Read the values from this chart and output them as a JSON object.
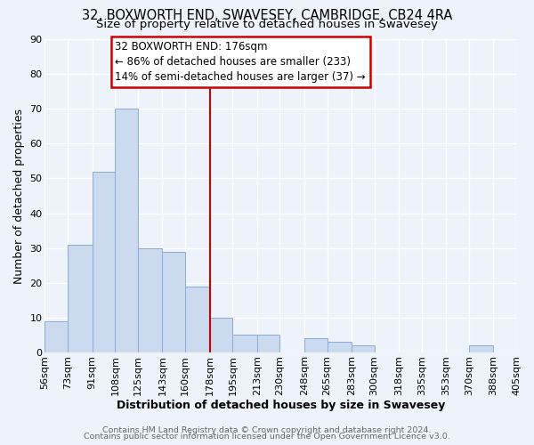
{
  "title_line1": "32, BOXWORTH END, SWAVESEY, CAMBRIDGE, CB24 4RA",
  "title_line2": "Size of property relative to detached houses in Swavesey",
  "xlabel": "Distribution of detached houses by size in Swavesey",
  "ylabel": "Number of detached properties",
  "footer_line1": "Contains HM Land Registry data © Crown copyright and database right 2024.",
  "footer_line2": "Contains public sector information licensed under the Open Government Licence v3.0.",
  "bin_edges": [
    56,
    73,
    91,
    108,
    125,
    143,
    160,
    178,
    195,
    213,
    230,
    248,
    265,
    283,
    300,
    318,
    335,
    353,
    370,
    388,
    405
  ],
  "bin_labels": [
    "56sqm",
    "73sqm",
    "91sqm",
    "108sqm",
    "125sqm",
    "143sqm",
    "160sqm",
    "178sqm",
    "195sqm",
    "213sqm",
    "230sqm",
    "248sqm",
    "265sqm",
    "283sqm",
    "300sqm",
    "318sqm",
    "335sqm",
    "353sqm",
    "370sqm",
    "388sqm",
    "405sqm"
  ],
  "counts": [
    9,
    31,
    52,
    70,
    30,
    29,
    19,
    10,
    5,
    5,
    0,
    4,
    3,
    2,
    0,
    0,
    0,
    0,
    2,
    0
  ],
  "bar_color": "#ccdaf0",
  "bar_edge_color": "#8aaad4",
  "reference_line_x": 178,
  "reference_line_color": "#cc0000",
  "annotation_line1": "32 BOXWORTH END: 176sqm",
  "annotation_line2": "← 86% of detached houses are smaller (233)",
  "annotation_line3": "14% of semi-detached houses are larger (37) →",
  "annotation_box_color": "#cc0000",
  "annotation_box_fill": "#ffffff",
  "ylim": [
    0,
    90
  ],
  "yticks": [
    0,
    10,
    20,
    30,
    40,
    50,
    60,
    70,
    80,
    90
  ],
  "background_color": "#eef2fb",
  "grid_color": "#ffffff",
  "title_fontsize": 10.5,
  "subtitle_fontsize": 9.5,
  "axis_label_fontsize": 9,
  "tick_fontsize": 8,
  "footer_fontsize": 6.8,
  "annotation_fontsize": 8.5
}
